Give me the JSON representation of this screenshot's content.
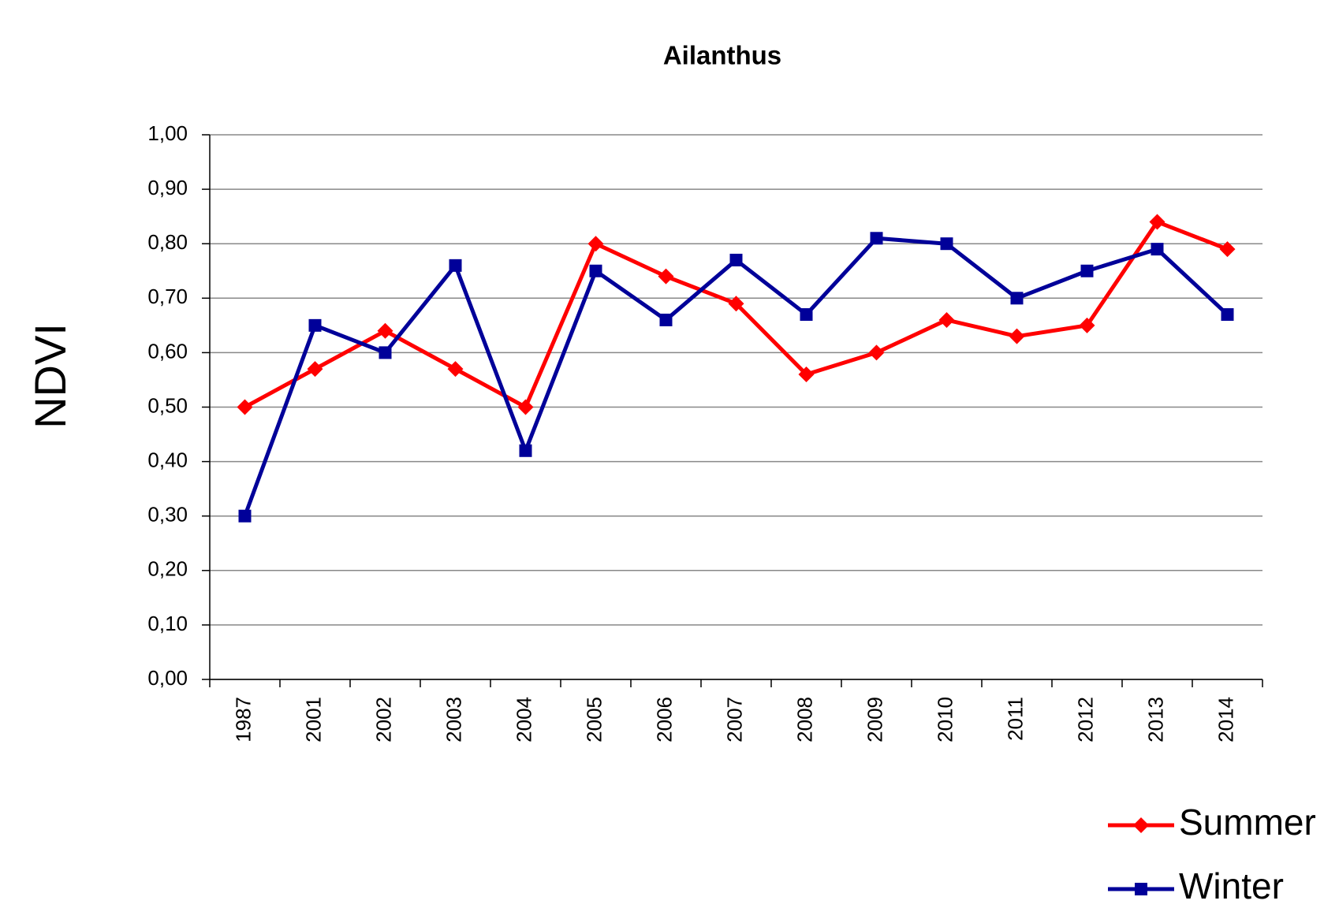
{
  "chart_data": {
    "type": "line",
    "title": "Ailanthus",
    "y_label": "NDVI",
    "categories": [
      "1987",
      "2001",
      "2002",
      "2003",
      "2004",
      "2005",
      "2006",
      "2007",
      "2008",
      "2009",
      "2010",
      "2011",
      "2012",
      "2013",
      "2014"
    ],
    "series": [
      {
        "name": "Summer",
        "color": "#ff0000",
        "marker": "diamond",
        "values": [
          0.5,
          0.57,
          0.64,
          0.57,
          0.5,
          0.8,
          0.74,
          0.69,
          0.56,
          0.6,
          0.66,
          0.63,
          0.65,
          0.84,
          0.79
        ]
      },
      {
        "name": "Winter",
        "color": "#000099",
        "marker": "square",
        "values": [
          0.3,
          0.65,
          0.6,
          0.76,
          0.42,
          0.75,
          0.66,
          0.77,
          0.67,
          0.81,
          0.8,
          0.7,
          0.75,
          0.79,
          0.67
        ]
      }
    ],
    "ylim": [
      0,
      1
    ],
    "yticks": [
      {
        "value": 0,
        "label": "0,00"
      },
      {
        "value": 0.1,
        "label": "0,10"
      },
      {
        "value": 0.2,
        "label": "0,20"
      },
      {
        "value": 0.3,
        "label": "0,30"
      },
      {
        "value": 0.4,
        "label": "0,40"
      },
      {
        "value": 0.5,
        "label": "0,50"
      },
      {
        "value": 0.6,
        "label": "0,60"
      },
      {
        "value": 0.7,
        "label": "0,70"
      },
      {
        "value": 0.8,
        "label": "0,80"
      },
      {
        "value": 0.9,
        "label": "0,90"
      },
      {
        "value": 1,
        "label": "1,00"
      }
    ],
    "grid": true,
    "legend": "bottom-right"
  }
}
